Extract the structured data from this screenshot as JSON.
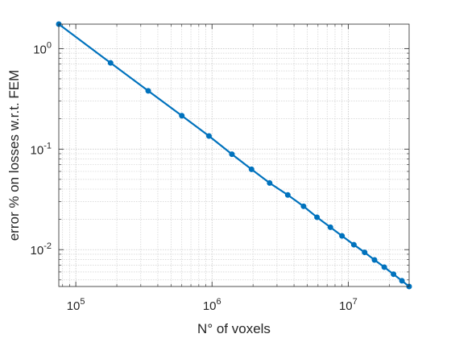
{
  "chart_data": {
    "type": "line",
    "title": "",
    "xlabel": "N° of voxels",
    "ylabel": "error % on losses w.r.t. FEM",
    "xscale": "log",
    "yscale": "log",
    "xlim": [
      75000,
      28000000
    ],
    "ylim": [
      0.0043,
      1.75
    ],
    "grid": true,
    "minor_grid": true,
    "legend": "none",
    "x_ticks": [
      {
        "value": 100000,
        "base": "10",
        "exp": "5"
      },
      {
        "value": 1000000,
        "base": "10",
        "exp": "6"
      },
      {
        "value": 10000000,
        "base": "10",
        "exp": "7"
      }
    ],
    "y_ticks": [
      {
        "value": 0.01,
        "base": "10",
        "exp": "-2"
      },
      {
        "value": 0.1,
        "base": "10",
        "exp": "-1"
      },
      {
        "value": 1,
        "base": "10",
        "exp": "0"
      }
    ],
    "series": [
      {
        "color": "#0072BD",
        "marker": "dot",
        "x": [
          75000,
          180000,
          340000,
          600000,
          950000,
          1400000,
          1950000,
          2650000,
          3600000,
          4700000,
          5900000,
          7400000,
          9000000,
          11000000,
          13200000,
          15600000,
          18400000,
          21500000,
          24800000,
          28000000
        ],
        "y": [
          1.75,
          0.72,
          0.38,
          0.215,
          0.135,
          0.089,
          0.063,
          0.046,
          0.035,
          0.027,
          0.021,
          0.0167,
          0.0137,
          0.0112,
          0.0094,
          0.0079,
          0.0067,
          0.0057,
          0.0049,
          0.0043
        ]
      }
    ]
  }
}
